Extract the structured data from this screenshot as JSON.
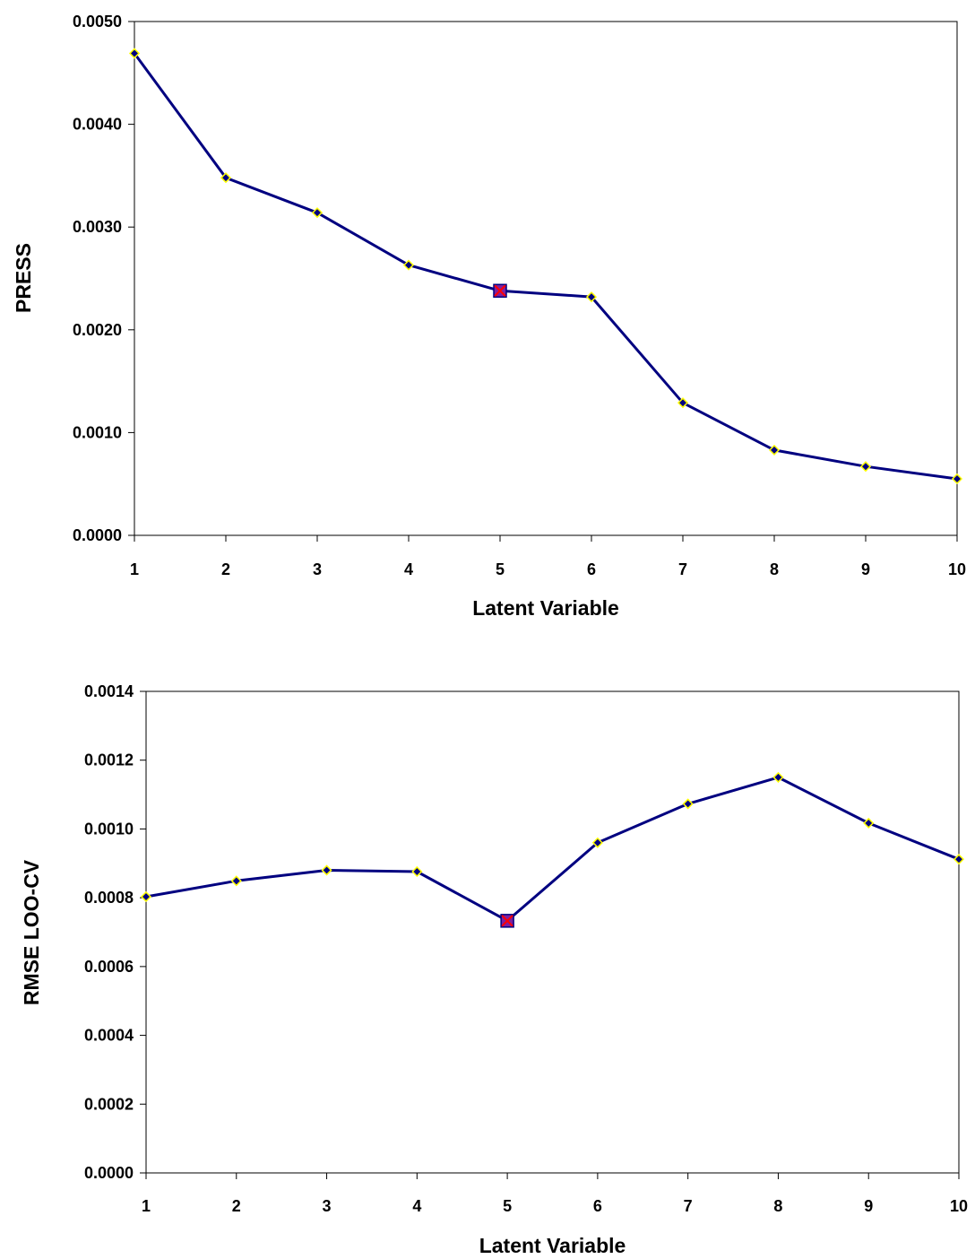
{
  "chart_data": [
    {
      "type": "line",
      "xlabel": "Latent Variable",
      "ylabel": "PRESS",
      "categories": [
        "1",
        "2",
        "3",
        "4",
        "5",
        "6",
        "7",
        "8",
        "9",
        "10"
      ],
      "x": [
        1,
        2,
        3,
        4,
        5,
        6,
        7,
        8,
        9,
        10
      ],
      "series": [
        {
          "values": [
            0.00469,
            0.00348,
            0.00314,
            0.00263,
            0.00238,
            0.00232,
            0.00129,
            0.00083,
            0.00067,
            0.00055
          ]
        }
      ],
      "highlight": {
        "x": 5,
        "value": 0.00238
      },
      "ylim": [
        0,
        0.005
      ],
      "yticks": [
        0,
        0.001,
        0.002,
        0.003,
        0.004,
        0.005
      ],
      "ytick_labels": [
        "0.0000",
        "0.0010",
        "0.0020",
        "0.0030",
        "0.0040",
        "0.0050"
      ],
      "grid": false,
      "legend": "none",
      "colors": {
        "line": "#000080",
        "marker_fill": "#000080",
        "marker_edge": "#ffff00",
        "highlight_fill": "#7f1f9f",
        "highlight_mark": "#ff0000"
      }
    },
    {
      "type": "line",
      "xlabel": "Latent Variable",
      "ylabel": "RMSE LOO-CV",
      "categories": [
        "1",
        "2",
        "3",
        "4",
        "5",
        "6",
        "7",
        "8",
        "9",
        "10"
      ],
      "x": [
        1,
        2,
        3,
        4,
        5,
        6,
        7,
        8,
        9,
        10
      ],
      "series": [
        {
          "values": [
            0.000803,
            0.000849,
            0.00088,
            0.000876,
            0.000733,
            0.00096,
            0.001073,
            0.00115,
            0.001017,
            0.000912
          ]
        }
      ],
      "highlight": {
        "x": 5,
        "value": 0.000733
      },
      "ylim": [
        0,
        0.0014
      ],
      "yticks": [
        0,
        0.0002,
        0.0004,
        0.0006,
        0.0008,
        0.001,
        0.0012,
        0.0014
      ],
      "ytick_labels": [
        "0.0000",
        "0.0002",
        "0.0004",
        "0.0006",
        "0.0008",
        "0.0010",
        "0.0012",
        "0.0014"
      ],
      "grid": false,
      "legend": "none",
      "colors": {
        "line": "#000080",
        "marker_fill": "#000080",
        "marker_edge": "#ffff00",
        "highlight_fill": "#7f1f9f",
        "highlight_mark": "#ff0000"
      }
    }
  ]
}
